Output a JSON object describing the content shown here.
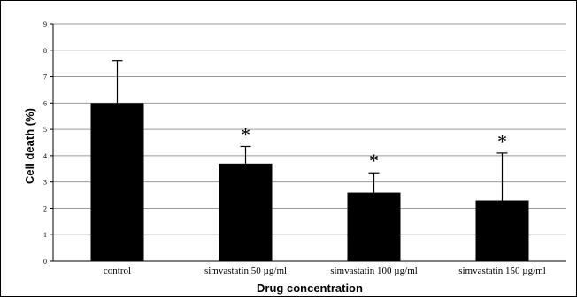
{
  "chart_data": {
    "type": "bar",
    "categories": [
      "control",
      "simvastatin 50 µg/ml",
      "simvastatin 100 µg/ml",
      "simvastatin 150 µg/ml"
    ],
    "values": [
      6.0,
      3.7,
      2.6,
      2.3
    ],
    "error_upper": [
      1.6,
      0.65,
      0.75,
      1.8
    ],
    "significance": [
      "",
      "*",
      "*",
      "*"
    ],
    "xlabel": "Drug concentration",
    "ylabel": "Cell death (%)",
    "ylim": [
      0,
      9
    ],
    "yticks": [
      0,
      1,
      2,
      3,
      4,
      5,
      6,
      7,
      8,
      9
    ],
    "grid": true,
    "bar_color": "#000000",
    "grid_color": "#9a9a9a"
  }
}
